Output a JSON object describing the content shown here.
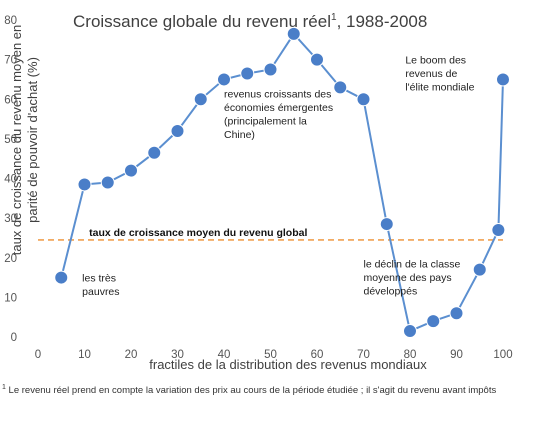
{
  "chart_data": {
    "type": "line",
    "title": "Croissance globale du revenu réel",
    "title_sup": "1",
    "title_suffix": ", 1988-2008",
    "xlabel": "fractiles de la distribution des revenus mondiaux",
    "ylabel": [
      "taux de croissance du revenu moyen en",
      "parité de pouvoir d'achat (%)"
    ],
    "xlim": [
      0,
      100
    ],
    "ylim": [
      0,
      80
    ],
    "x_ticks": [
      0,
      10,
      20,
      30,
      40,
      50,
      60,
      70,
      80,
      90,
      100
    ],
    "y_ticks": [
      0,
      10,
      20,
      30,
      40,
      50,
      60,
      70,
      80
    ],
    "grid": false,
    "line_color": "#5b8fd0",
    "marker_color": "#4a7ec8",
    "series": [
      {
        "x": [
          5,
          10,
          15,
          20,
          25,
          30,
          35,
          40,
          45,
          50,
          55,
          60,
          65,
          70,
          75,
          80,
          85,
          90,
          95,
          99,
          100
        ],
        "y": [
          15,
          38.5,
          39,
          42,
          46.5,
          52,
          60,
          65,
          66.5,
          67.5,
          76.5,
          70,
          63,
          60,
          28.5,
          1.5,
          4,
          6,
          17,
          27,
          65
        ]
      }
    ],
    "reference_line": {
      "y": 24.5,
      "label": "taux de croissance moyen du revenu global",
      "color": "#f0a050",
      "style": "dashed"
    },
    "annotations": [
      {
        "lines": [
          "les très",
          "pauvres"
        ],
        "x": 9.5,
        "y": 14
      },
      {
        "lines": [
          "revenus croissants des",
          "économies émergentes",
          "(principalement la",
          "Chine)"
        ],
        "x": 40,
        "y": 60.5
      },
      {
        "lines": [
          "Le boom des",
          "revenus de",
          "l'élite mondiale"
        ],
        "x": 79,
        "y": 69
      },
      {
        "lines": [
          "le déclin de la classe",
          "moyenne des pays",
          "développés"
        ],
        "x": 70,
        "y": 17.5
      }
    ]
  },
  "footnote": {
    "sup": "1",
    "text": " Le revenu réel prend en compte la variation des prix au cours de la période étudiée ; il s'agit du revenu avant impôts"
  }
}
